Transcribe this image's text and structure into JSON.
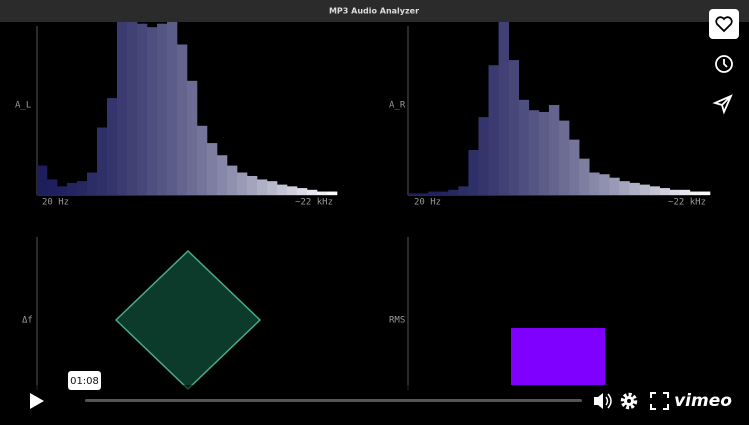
{
  "window_title": "MP3 Audio Analyzer",
  "spectra": [
    {
      "label": "A_L",
      "x_start": "20 Hz",
      "x_end": "~22 kHz",
      "levels": [
        17,
        9,
        5,
        7,
        8,
        13,
        39,
        56,
        100,
        100,
        99,
        97,
        99,
        100,
        87,
        66,
        40,
        30,
        23,
        17,
        13,
        11,
        9,
        8,
        6,
        5,
        4,
        3,
        2,
        2
      ]
    },
    {
      "label": "A_R",
      "x_start": "20 Hz",
      "x_end": "~22 kHz",
      "levels": [
        1,
        1,
        2,
        2,
        3,
        5,
        26,
        45,
        75,
        100,
        78,
        55,
        49,
        48,
        52,
        43,
        32,
        21,
        13,
        12,
        10,
        8,
        7,
        6,
        5,
        4,
        3,
        3,
        2,
        2
      ]
    }
  ],
  "lower_panels": [
    {
      "label": "Δf"
    },
    {
      "label": "RMS"
    }
  ],
  "player": {
    "time_tooltip": "01:08",
    "brand": "vimeo"
  }
}
